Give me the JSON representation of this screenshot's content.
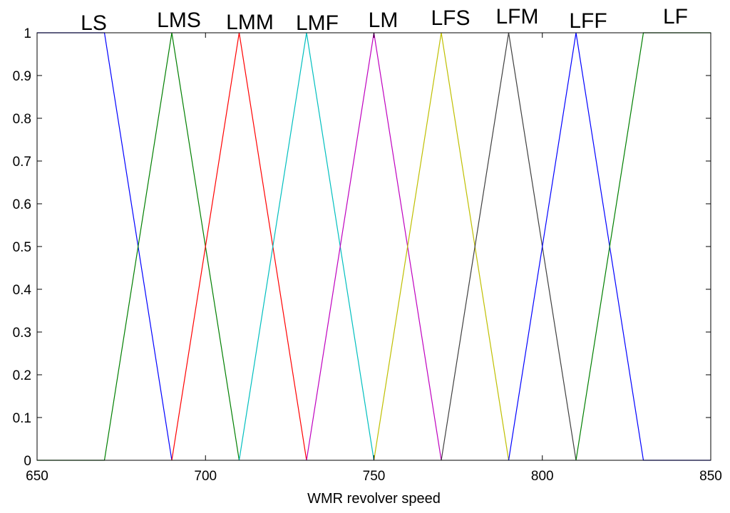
{
  "chart_data": {
    "type": "line",
    "xlabel": "WMR revolver speed",
    "ylabel": "",
    "xlim": [
      650,
      850
    ],
    "ylim": [
      0,
      1
    ],
    "x_ticks": [
      "650",
      "700",
      "750",
      "800",
      "850"
    ],
    "y_ticks": [
      "0",
      "0.1",
      "0.2",
      "0.3",
      "0.4",
      "0.5",
      "0.6",
      "0.7",
      "0.8",
      "0.9",
      "1"
    ],
    "grid": false,
    "series": [
      {
        "name": "LS",
        "color": "#0000ff",
        "x": [
          650,
          670,
          690
        ],
        "y": [
          1,
          1,
          0
        ]
      },
      {
        "name": "LMS",
        "color": "#007f00",
        "x": [
          670,
          690,
          710
        ],
        "y": [
          0,
          1,
          0
        ]
      },
      {
        "name": "LMM",
        "color": "#ff0000",
        "x": [
          690,
          710,
          730
        ],
        "y": [
          0,
          1,
          0
        ]
      },
      {
        "name": "LMF",
        "color": "#00bfbf",
        "x": [
          710,
          730,
          750
        ],
        "y": [
          0,
          1,
          0
        ]
      },
      {
        "name": "LM",
        "color": "#bf00bf",
        "x": [
          730,
          750,
          770
        ],
        "y": [
          0,
          1,
          0
        ]
      },
      {
        "name": "LFS",
        "color": "#bfbf00",
        "x": [
          750,
          770,
          790
        ],
        "y": [
          0,
          1,
          0
        ]
      },
      {
        "name": "LFM",
        "color": "#3f3f3f",
        "x": [
          770,
          790,
          810
        ],
        "y": [
          0,
          1,
          0
        ]
      },
      {
        "name": "LFF",
        "color": "#0000ff",
        "x": [
          790,
          810,
          830
        ],
        "y": [
          0,
          1,
          0
        ]
      },
      {
        "name": "LF",
        "color": "#007f00",
        "x": [
          810,
          830,
          850
        ],
        "y": [
          0,
          1,
          1
        ]
      }
    ],
    "baseline_segments": [
      {
        "color": "#007f00",
        "x": [
          650,
          670
        ]
      },
      {
        "color": "#0000ff",
        "x": [
          830,
          850
        ]
      }
    ],
    "label_anchor_x": [
      670,
      690,
      710,
      730,
      750,
      770,
      790,
      810,
      830
    ]
  }
}
